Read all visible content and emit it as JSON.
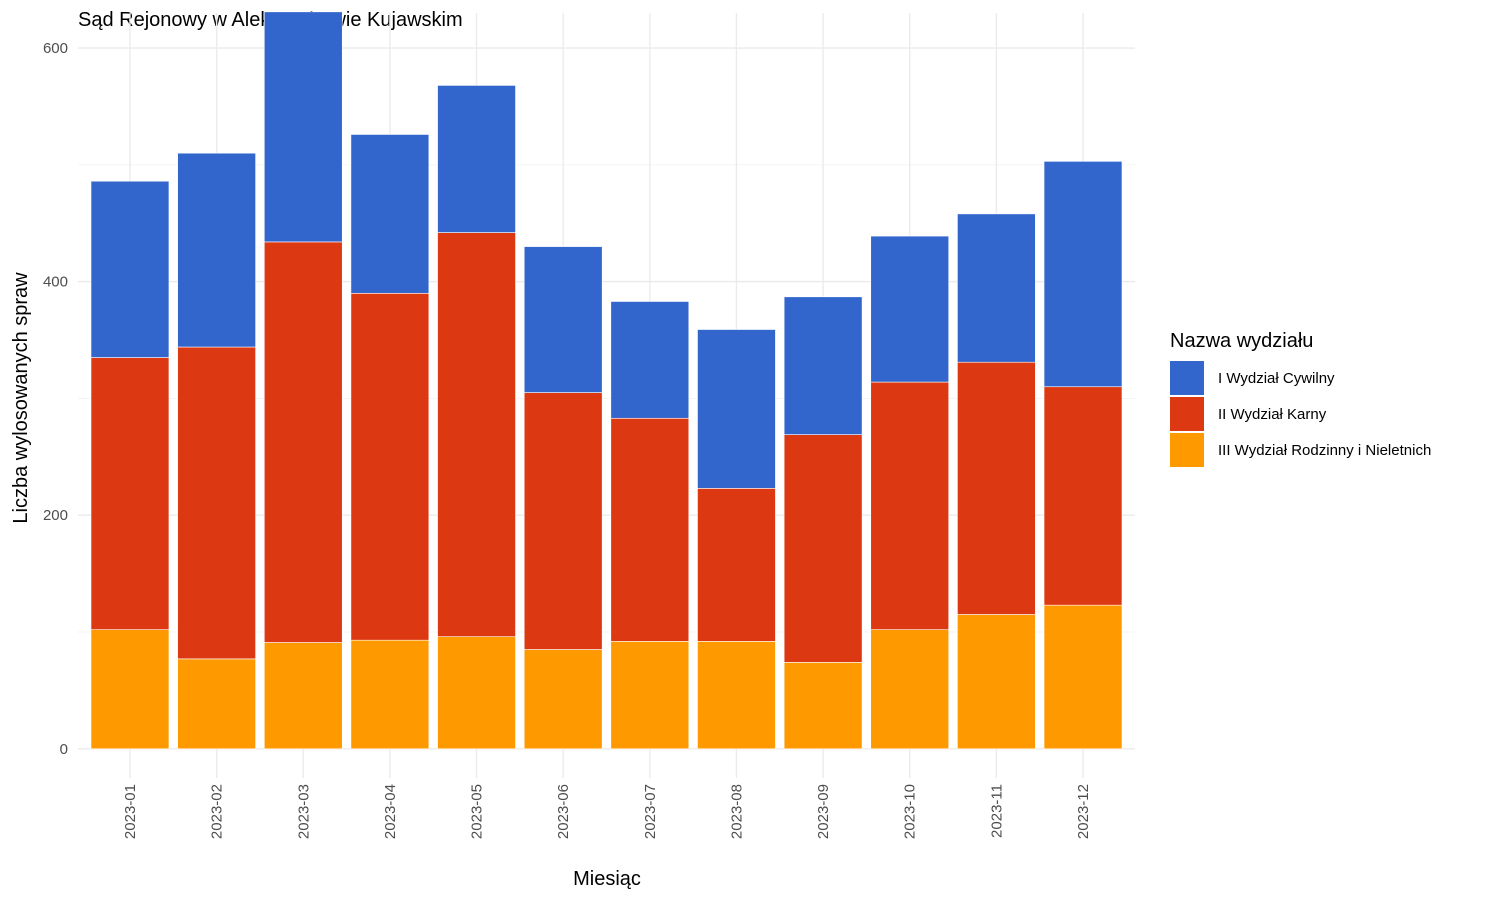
{
  "chart_data": {
    "type": "bar",
    "stacked": true,
    "title": "Sąd Rejonowy w Aleksandrowie Kujawskim",
    "xlabel": "Miesiąc",
    "ylabel": "Liczba wylosowanych spraw",
    "ylim": [
      -25,
      630
    ],
    "yticks": [
      0,
      200,
      400,
      600
    ],
    "grid": true,
    "legend": {
      "title": "Nazwa wydziału",
      "placement": "right"
    },
    "categories": [
      "2023-01",
      "2023-02",
      "2023-03",
      "2023-04",
      "2023-05",
      "2023-06",
      "2023-07",
      "2023-08",
      "2023-09",
      "2023-10",
      "2023-11",
      "2023-12"
    ],
    "series": [
      {
        "name": "III Wydział Rodzinny i Nieletnich",
        "color": "#ff9900",
        "values": [
          102,
          77,
          91,
          93,
          96,
          85,
          92,
          92,
          74,
          102,
          115,
          123
        ]
      },
      {
        "name": "II Wydział Karny",
        "color": "#dc3912",
        "values": [
          233,
          267,
          343,
          297,
          346,
          220,
          191,
          131,
          195,
          212,
          216,
          187
        ]
      },
      {
        "name": "I Wydział Cywilny",
        "color": "#3366cc",
        "values": [
          151,
          166,
          197,
          136,
          126,
          125,
          100,
          136,
          118,
          125,
          127,
          193
        ]
      }
    ],
    "legend_order": [
      "I Wydział Cywilny",
      "II Wydział Karny",
      "III Wydział Rodzinny i Nieletnich"
    ]
  }
}
